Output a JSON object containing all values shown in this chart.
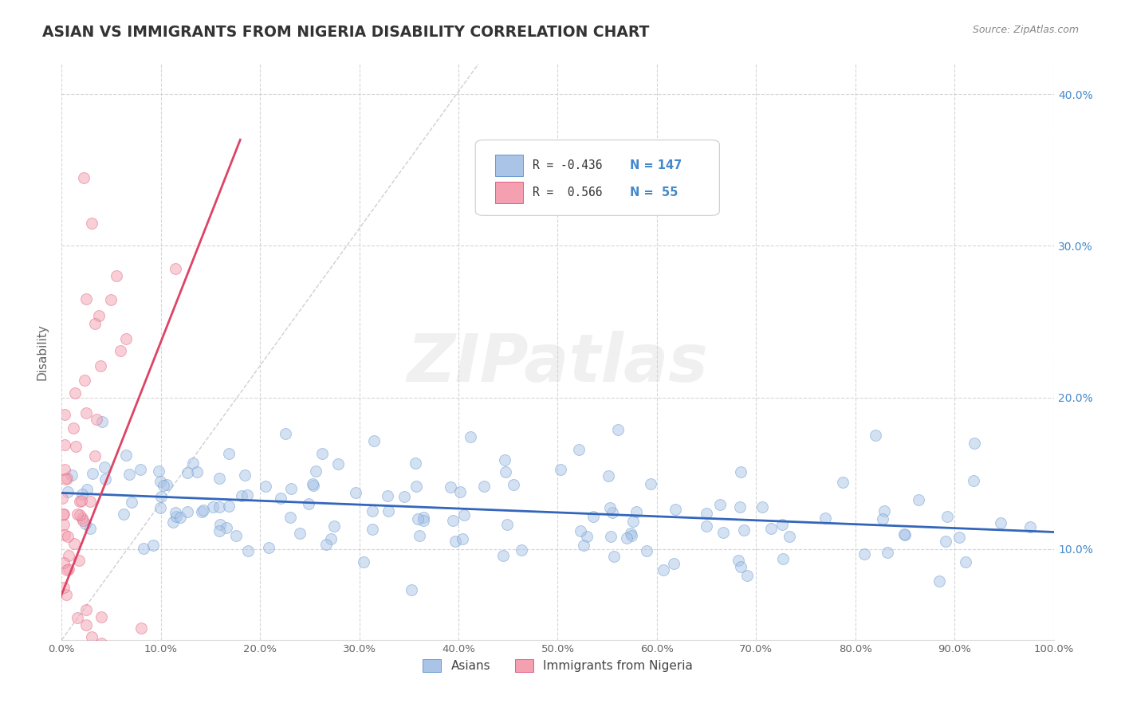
{
  "title": "ASIAN VS IMMIGRANTS FROM NIGERIA DISABILITY CORRELATION CHART",
  "source_text": "Source: ZipAtlas.com",
  "ylabel": "Disability",
  "xlim": [
    0.0,
    1.0
  ],
  "ylim": [
    0.04,
    0.42
  ],
  "xticks": [
    0.0,
    0.1,
    0.2,
    0.3,
    0.4,
    0.5,
    0.6,
    0.7,
    0.8,
    0.9,
    1.0
  ],
  "xtick_labels": [
    "0.0%",
    "10.0%",
    "20.0%",
    "30.0%",
    "40.0%",
    "50.0%",
    "60.0%",
    "70.0%",
    "80.0%",
    "90.0%",
    "100.0%"
  ],
  "yticks": [
    0.1,
    0.2,
    0.3,
    0.4
  ],
  "ytick_labels": [
    "10.0%",
    "20.0%",
    "30.0%",
    "40.0%"
  ],
  "grid_color": "#cccccc",
  "background_color": "#ffffff",
  "asian_color": "#aac4e8",
  "nigeria_color": "#f4a0b0",
  "asian_edge_color": "#6699cc",
  "nigeria_edge_color": "#e06080",
  "asian_line_color": "#3366bb",
  "nigeria_line_color": "#dd4466",
  "ref_line_color": "#bbbbbb",
  "legend_label_asian": "Asians",
  "legend_label_nigeria": "Immigrants from Nigeria",
  "watermark": "ZIPatlas",
  "asian_R": -0.436,
  "asian_N": 147,
  "nigeria_R": 0.566,
  "nigeria_N": 55,
  "marker_size": 100,
  "asian_alpha": 0.5,
  "nigeria_alpha": 0.5,
  "ytick_color": "#4488cc",
  "xtick_color": "#666666",
  "title_color": "#333333",
  "source_color": "#888888"
}
